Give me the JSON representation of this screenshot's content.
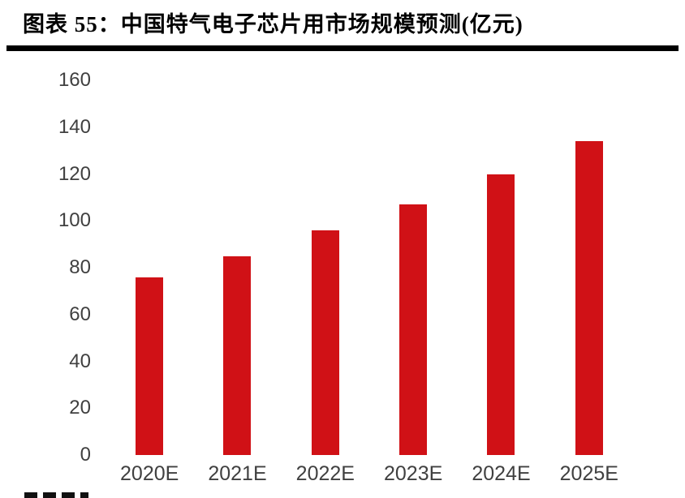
{
  "header": {
    "title": "图表 55：中国特气电子芯片用市场规模预测(亿元)"
  },
  "chart_data": {
    "type": "bar",
    "title": "中国特气电子芯片用市场规模预测(亿元)",
    "categories": [
      "2020E",
      "2021E",
      "2022E",
      "2023E",
      "2024E",
      "2025E"
    ],
    "values": [
      76,
      85,
      96,
      107,
      120,
      134
    ],
    "xlabel": "",
    "ylabel": "",
    "ylim": [
      0,
      160
    ],
    "yticks": [
      0,
      20,
      40,
      60,
      80,
      100,
      120,
      140,
      160
    ],
    "grid": false,
    "legend": "none",
    "bar_color": "#d01116",
    "axis_text_color": "#404040"
  }
}
